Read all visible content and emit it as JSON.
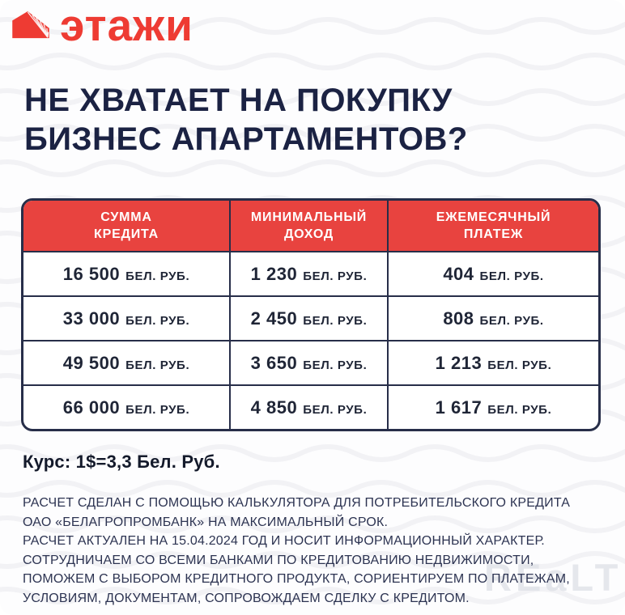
{
  "brand": {
    "name": "этажи"
  },
  "heading": {
    "line1": "НЕ ХВАТАЕТ НА ПОКУПКУ",
    "line2": "БИЗНЕС АПАРТАМЕНТОВ?"
  },
  "table": {
    "headers": [
      {
        "line1": "СУММА",
        "line2": "КРЕДИТА"
      },
      {
        "line1": "МИНИМАЛЬНЫЙ",
        "line2": "ДОХОД"
      },
      {
        "line1": "ЕЖЕМЕСЯЧНЫЙ",
        "line2": "ПЛАТЕЖ"
      }
    ],
    "rows": [
      [
        {
          "amount": "16 500",
          "unit": "БЕЛ. РУБ."
        },
        {
          "amount": "1 230",
          "unit": "БЕЛ. РУБ."
        },
        {
          "amount": "404",
          "unit": "БЕЛ. РУБ."
        }
      ],
      [
        {
          "amount": "33 000",
          "unit": "БЕЛ. РУБ."
        },
        {
          "amount": "2 450",
          "unit": "БЕЛ. РУБ."
        },
        {
          "amount": "808",
          "unit": "БЕЛ. РУБ."
        }
      ],
      [
        {
          "amount": "49 500",
          "unit": "БЕЛ. РУБ."
        },
        {
          "amount": "3 650",
          "unit": "БЕЛ. РУБ."
        },
        {
          "amount": "1 213",
          "unit": "БЕЛ. РУБ."
        }
      ],
      [
        {
          "amount": "66 000",
          "unit": "БЕЛ. РУБ."
        },
        {
          "amount": "4 850",
          "unit": "БЕЛ. РУБ."
        },
        {
          "amount": "1 617",
          "unit": "БЕЛ. РУБ."
        }
      ]
    ]
  },
  "exchange_rate": "Курс: 1$=3,3 Бел. Руб.",
  "disclaimer": {
    "lines": [
      "РАСЧЕТ СДЕЛАН С ПОМОЩЬЮ КАЛЬКУЛЯТОРА ДЛЯ ПОТРЕБИТЕЛЬСКОГО КРЕДИТА",
      "ОАО «БЕЛАГРОПРОМБАНК» НА МАКСИМАЛЬНЫЙ СРОК.",
      "РАСЧЕТ АКТУАЛЕН НА 15.04.2024 ГОД И НОСИТ ИНФОРМАЦИОННЫЙ ХАРАКТЕР.",
      "СОТРУДНИЧАЕМ СО ВСЕМИ БАНКАМИ ПО КРЕДИТОВАНИЮ НЕДВИЖИМОСТИ,",
      "ПОМОЖЕМ С ВЫБОРОМ КРЕДИТНОГО ПРОДУКТА, СОРИЕНТИРУЕМ ПО ПЛАТЕЖАМ,",
      "УСЛОВИЯМ, ДОКУМЕНТАМ, СОПРОВОЖДАЕМ СДЕЛКУ С КРЕДИТОМ."
    ]
  },
  "watermark": "REaLT",
  "colors": {
    "accent_red": "#e8433f",
    "logo_red": "#ee3b33",
    "navy": "#1b2243",
    "table_border": "#272e49",
    "cell_text": "#1f2536",
    "disclaimer_text": "#2d3452",
    "watermark_gray": "#e0e2e8",
    "wave_gray": "#f2f2f5"
  }
}
